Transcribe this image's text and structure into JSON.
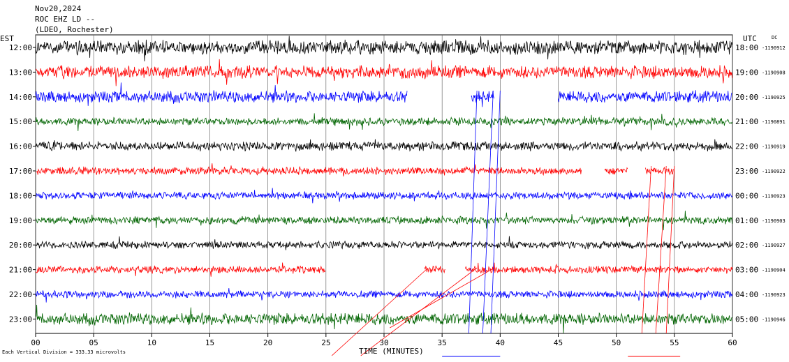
{
  "header": {
    "date": "Nov20,2024",
    "station": "ROC EHZ LD --",
    "network": "(LDEO, Rochester)",
    "left_axis_label": "EST",
    "right_axis_label": "UTC",
    "dc_label": "DC"
  },
  "footer": {
    "time_axis_label": "TIME (MINUTES)",
    "scale_note": "Each Vertical Division =  333.33 microvolts"
  },
  "chart_data": {
    "type": "line",
    "title": "Nov20,2024",
    "xlabel": "TIME (MINUTES)",
    "ylabel": "",
    "xlim": [
      0,
      60
    ],
    "x_ticks": [
      {
        "value": 0,
        "label": "00"
      },
      {
        "value": 5,
        "label": "05"
      },
      {
        "value": 10,
        "label": "10"
      },
      {
        "value": 15,
        "label": "15"
      },
      {
        "value": 20,
        "label": "20"
      },
      {
        "value": 25,
        "label": "25"
      },
      {
        "value": 30,
        "label": "30"
      },
      {
        "value": 35,
        "label": "35"
      },
      {
        "value": 40,
        "label": "40"
      },
      {
        "value": 45,
        "label": "45"
      },
      {
        "value": 50,
        "label": "50"
      },
      {
        "value": 55,
        "label": "55"
      },
      {
        "value": 60,
        "label": "60"
      }
    ],
    "grid": true,
    "colors": [
      "#000000",
      "#ff0000",
      "#0000ff",
      "#006400"
    ],
    "rows": [
      {
        "est": "12:00",
        "utc": "18:00",
        "dc": "-1190912",
        "color": "#000000",
        "amplitude": 0.55,
        "segments": [
          [
            0,
            60
          ]
        ]
      },
      {
        "est": "13:00",
        "utc": "19:00",
        "dc": "-1190908",
        "color": "#ff0000",
        "amplitude": 0.5,
        "segments": [
          [
            0,
            60
          ]
        ]
      },
      {
        "est": "14:00",
        "utc": "20:00",
        "dc": "-1190925",
        "color": "#0000ff",
        "amplitude": 0.45,
        "segments": [
          [
            0,
            32
          ],
          [
            37.5,
            39.5
          ],
          [
            45,
            60
          ]
        ]
      },
      {
        "est": "15:00",
        "utc": "21:00",
        "dc": "-1190891",
        "color": "#006400",
        "amplitude": 0.3,
        "segments": [
          [
            0,
            60
          ]
        ]
      },
      {
        "est": "16:00",
        "utc": "22:00",
        "dc": "-1190919",
        "color": "#000000",
        "amplitude": 0.35,
        "segments": [
          [
            0,
            60
          ]
        ]
      },
      {
        "est": "17:00",
        "utc": "23:00",
        "dc": "-1190922",
        "color": "#ff0000",
        "amplitude": 0.3,
        "segments": [
          [
            0,
            47
          ],
          [
            49,
            51
          ],
          [
            52.5,
            55
          ]
        ]
      },
      {
        "est": "18:00",
        "utc": "00:00",
        "dc": "-1190923",
        "color": "#0000ff",
        "amplitude": 0.28,
        "segments": [
          [
            0,
            60
          ]
        ]
      },
      {
        "est": "19:00",
        "utc": "01:00",
        "dc": "-1190903",
        "color": "#006400",
        "amplitude": 0.3,
        "segments": [
          [
            0,
            60
          ]
        ]
      },
      {
        "est": "20:00",
        "utc": "02:00",
        "dc": "-1190927",
        "color": "#000000",
        "amplitude": 0.28,
        "segments": [
          [
            0,
            60
          ]
        ]
      },
      {
        "est": "21:00",
        "utc": "03:00",
        "dc": "-1190904",
        "color": "#ff0000",
        "amplitude": 0.28,
        "segments": [
          [
            0,
            25
          ],
          [
            33.5,
            35.3
          ],
          [
            37,
            60
          ]
        ]
      },
      {
        "est": "22:00",
        "utc": "04:00",
        "dc": "-1190923",
        "color": "#0000ff",
        "amplitude": 0.28,
        "segments": [
          [
            0,
            60
          ]
        ]
      },
      {
        "est": "23:00",
        "utc": "05:00",
        "dc": "-1190946",
        "color": "#006400",
        "amplitude": 0.45,
        "segments": [
          [
            0,
            60
          ]
        ]
      }
    ]
  }
}
